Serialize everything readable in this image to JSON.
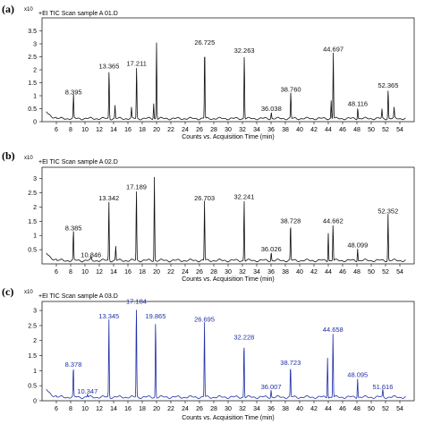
{
  "colors": {
    "black_trace": "#111111",
    "blue_trace": "#1f2fa8",
    "axis": "#222222"
  },
  "chart_data": [
    {
      "type": "line",
      "panel_label": "(a)",
      "title": "+EI TIC Scan sample A 01.D",
      "scale_label": "x10",
      "xlabel": "Counts vs. Acquisition Time (min)",
      "xlim": [
        4,
        56
      ],
      "ylim": [
        0,
        4
      ],
      "x_ticks": [
        6,
        8,
        10,
        12,
        14,
        16,
        18,
        20,
        22,
        24,
        26,
        28,
        30,
        32,
        34,
        36,
        38,
        40,
        42,
        44,
        46,
        48,
        50,
        52,
        54
      ],
      "y_ticks": [
        0,
        0.5,
        1,
        1.5,
        2,
        2.5,
        3,
        3.5
      ],
      "trace_color": "#111111",
      "peaks": [
        {
          "x": 8.395,
          "y": 0.9,
          "label": "8.395"
        },
        {
          "x": 13.365,
          "y": 1.9,
          "label": "13.365"
        },
        {
          "x": 14.2,
          "y": 0.5,
          "label": ""
        },
        {
          "x": 16.5,
          "y": 0.4,
          "label": ""
        },
        {
          "x": 17.211,
          "y": 2.0,
          "label": "17.211"
        },
        {
          "x": 19.6,
          "y": 0.6,
          "label": ""
        },
        {
          "x": 20.0,
          "y": 2.95,
          "label": ""
        },
        {
          "x": 26.725,
          "y": 2.8,
          "label": "26.725"
        },
        {
          "x": 32.263,
          "y": 2.5,
          "label": "32.263"
        },
        {
          "x": 36.038,
          "y": 0.25,
          "label": "36.038"
        },
        {
          "x": 38.76,
          "y": 1.0,
          "label": "38.760"
        },
        {
          "x": 44.4,
          "y": 0.7,
          "label": ""
        },
        {
          "x": 44.697,
          "y": 2.55,
          "label": "44.697"
        },
        {
          "x": 48.116,
          "y": 0.45,
          "label": "48.116"
        },
        {
          "x": 51.5,
          "y": 0.35,
          "label": ""
        },
        {
          "x": 52.365,
          "y": 1.15,
          "label": "52.365"
        },
        {
          "x": 53.2,
          "y": 0.4,
          "label": ""
        }
      ]
    },
    {
      "type": "line",
      "panel_label": "(b)",
      "title": "+EI TIC Scan sample A 02.D",
      "scale_label": "x10",
      "xlabel": "Counts vs. Acquisition Time (min)",
      "xlim": [
        4,
        56
      ],
      "ylim": [
        0,
        3.4
      ],
      "x_ticks": [
        6,
        8,
        10,
        12,
        14,
        16,
        18,
        20,
        22,
        24,
        26,
        28,
        30,
        32,
        34,
        36,
        38,
        40,
        42,
        44,
        46,
        48,
        50,
        52,
        54
      ],
      "y_ticks": [
        0.5,
        1,
        1.5,
        2,
        2.5,
        3
      ],
      "trace_color": "#111111",
      "peaks": [
        {
          "x": 8.385,
          "y": 1.05,
          "label": "8.385"
        },
        {
          "x": 10.846,
          "y": 0.1,
          "label": "10.846"
        },
        {
          "x": 13.342,
          "y": 2.1,
          "label": "13.342"
        },
        {
          "x": 14.3,
          "y": 0.5,
          "label": ""
        },
        {
          "x": 17.189,
          "y": 2.5,
          "label": "17.189"
        },
        {
          "x": 19.7,
          "y": 2.95,
          "label": ""
        },
        {
          "x": 26.703,
          "y": 2.1,
          "label": "26.703"
        },
        {
          "x": 32.241,
          "y": 2.15,
          "label": "32.241"
        },
        {
          "x": 36.026,
          "y": 0.3,
          "label": "36.026"
        },
        {
          "x": 38.728,
          "y": 1.3,
          "label": "38.728"
        },
        {
          "x": 44.0,
          "y": 1.0,
          "label": ""
        },
        {
          "x": 44.662,
          "y": 1.3,
          "label": "44.662"
        },
        {
          "x": 48.099,
          "y": 0.45,
          "label": "48.099"
        },
        {
          "x": 52.352,
          "y": 1.65,
          "label": "52.352"
        }
      ]
    },
    {
      "type": "line",
      "panel_label": "(c)",
      "title": "+EI TIC Scan sample A 03.D",
      "scale_label": "x10",
      "xlabel": "Counts vs. Acquisition Time (min)",
      "xlim": [
        4,
        56
      ],
      "ylim": [
        0,
        3.3
      ],
      "x_ticks": [
        6,
        8,
        10,
        12,
        14,
        16,
        18,
        20,
        22,
        24,
        26,
        28,
        30,
        32,
        34,
        36,
        38,
        40,
        42,
        44,
        46,
        48,
        50,
        52,
        54
      ],
      "y_ticks": [
        0,
        0.5,
        1,
        1.5,
        2,
        2.5,
        3
      ],
      "trace_color": "#1f2fa8",
      "peaks": [
        {
          "x": 8.378,
          "y": 1.0,
          "label": "8.378"
        },
        {
          "x": 10.347,
          "y": 0.1,
          "label": "10.347"
        },
        {
          "x": 13.345,
          "y": 2.6,
          "label": "13.345"
        },
        {
          "x": 17.184,
          "y": 3.1,
          "label": "17.184"
        },
        {
          "x": 19.865,
          "y": 2.6,
          "label": "19.865"
        },
        {
          "x": 26.695,
          "y": 2.5,
          "label": "26.695"
        },
        {
          "x": 32.228,
          "y": 1.9,
          "label": "32.228"
        },
        {
          "x": 36.007,
          "y": 0.25,
          "label": "36.007"
        },
        {
          "x": 38.723,
          "y": 1.05,
          "label": "38.723"
        },
        {
          "x": 43.9,
          "y": 1.35,
          "label": ""
        },
        {
          "x": 44.658,
          "y": 2.15,
          "label": "44.658"
        },
        {
          "x": 48.095,
          "y": 0.65,
          "label": "48.095"
        },
        {
          "x": 51.616,
          "y": 0.25,
          "label": "51.616"
        }
      ]
    }
  ]
}
